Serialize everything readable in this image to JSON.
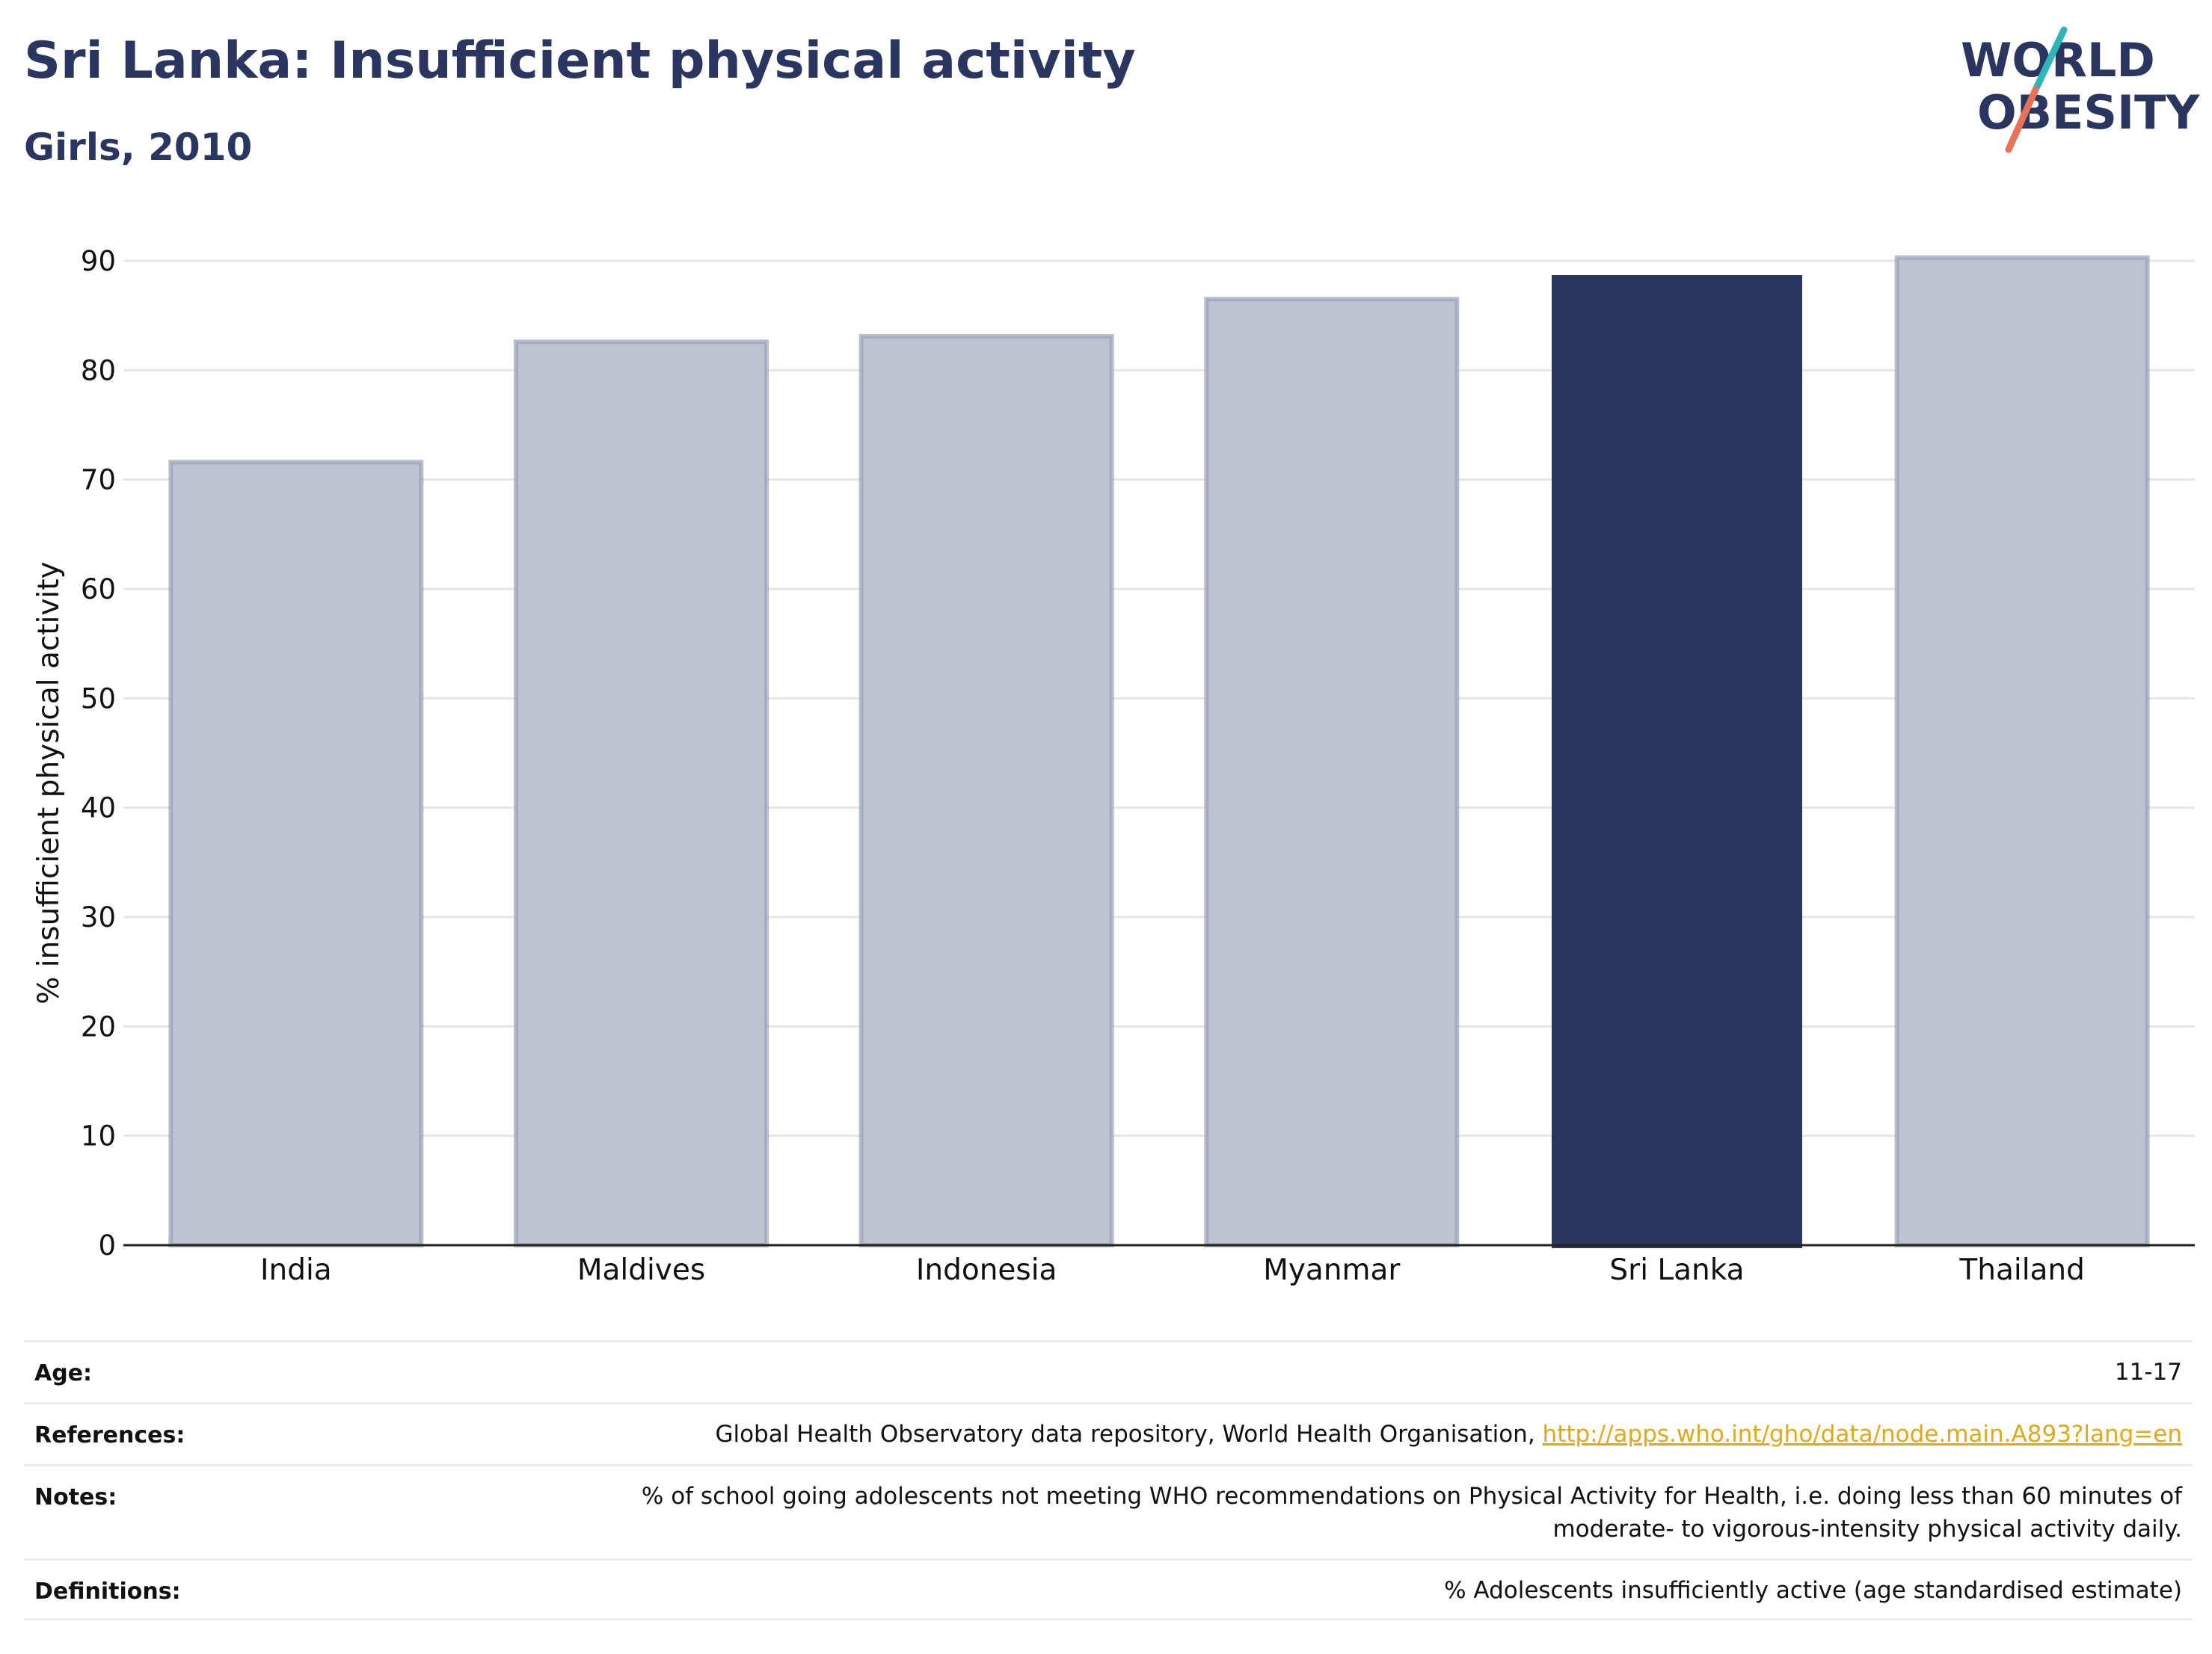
{
  "header": {
    "title": "Sri Lanka: Insufficient physical activity",
    "subtitle": "Girls, 2010"
  },
  "logo": {
    "line1": "WORLD",
    "line2": "OBESITY",
    "colors": {
      "text": "#2a3560",
      "slash_teal": "#2fb5b8",
      "slash_coral": "#e8715a"
    }
  },
  "chart_data": {
    "type": "bar",
    "categories": [
      "India",
      "Maldives",
      "Indonesia",
      "Myanmar",
      "Sri Lanka",
      "Thailand"
    ],
    "values": [
      71.6,
      82.6,
      83.1,
      86.5,
      88.7,
      90.3
    ],
    "highlight": "Sri Lanka",
    "colors": {
      "bar": "#bfc3cf",
      "bar_outline": "#9aa0b8",
      "highlight": "#2a3560",
      "grid": "#e6e6e6",
      "axis": "#222222"
    },
    "ylabel": "% insufficient physical activity",
    "xlabel": "",
    "ylim": [
      0,
      90
    ],
    "yticks": [
      0,
      10,
      20,
      30,
      40,
      50,
      60,
      70,
      80,
      90
    ],
    "grid": true,
    "legend": "none"
  },
  "info": {
    "age": {
      "label": "Age:",
      "value": "11-17"
    },
    "references": {
      "label": "References:",
      "text": "Global Health Observatory data repository, World Health Organisation,",
      "link": "http://apps.who.int/gho/data/node.main.A893?lang=en"
    },
    "notes": {
      "label": "Notes:",
      "line1": "% of school going adolescents not meeting WHO recommendations on Physical Activity for Health, i.e. doing less than 60 minutes of",
      "line2": "moderate- to vigorous-intensity physical activity daily."
    },
    "definitions": {
      "label": "Definitions:",
      "value": "% Adolescents insufficiently active (age standardised estimate)"
    }
  }
}
